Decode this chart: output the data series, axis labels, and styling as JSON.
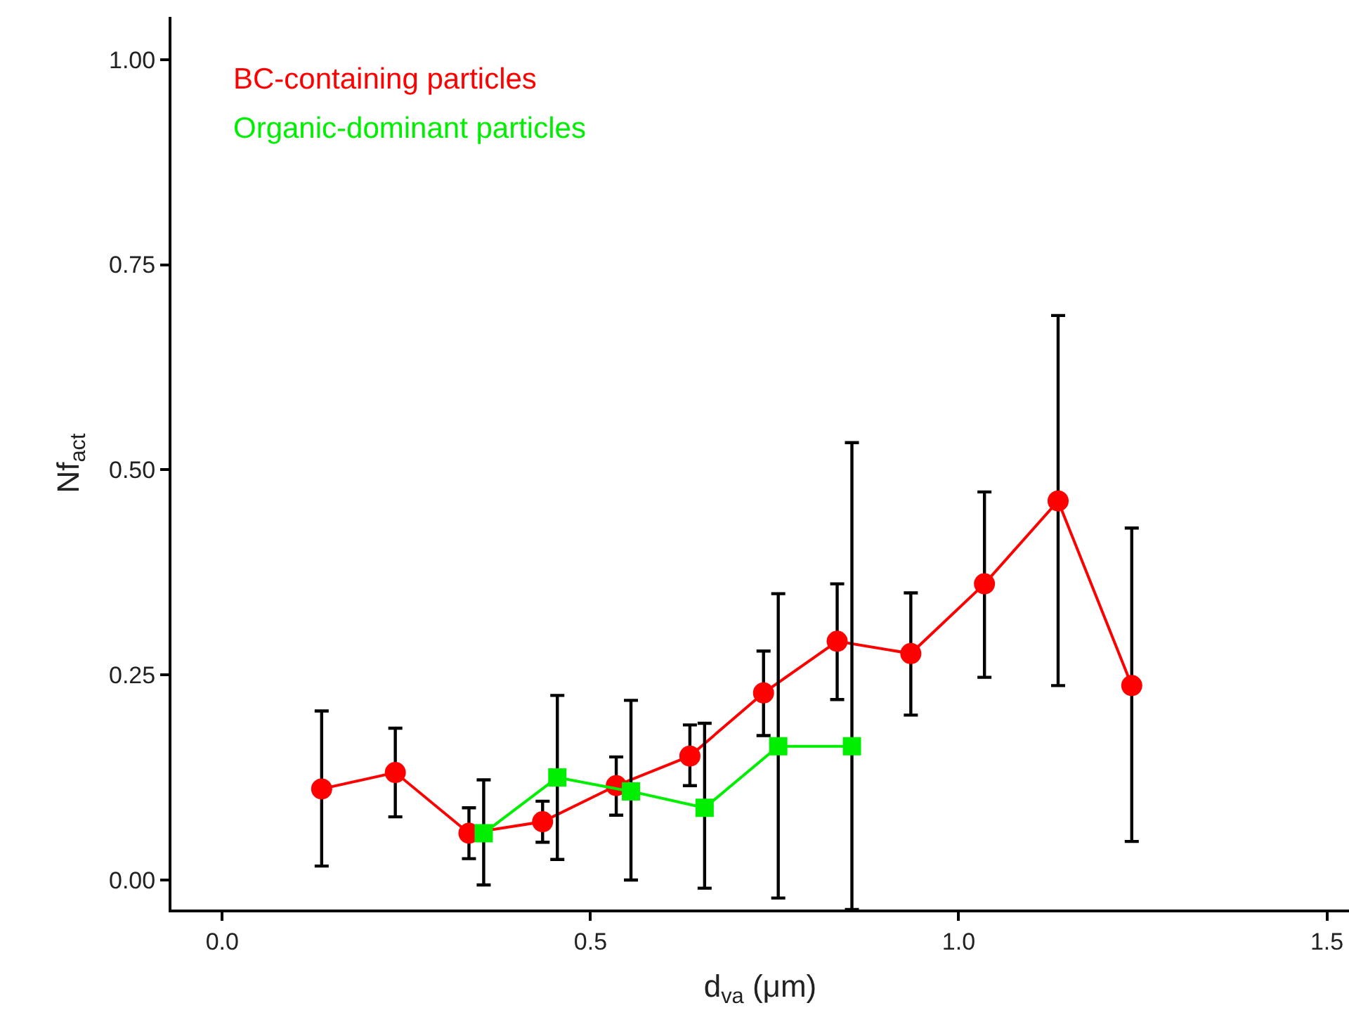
{
  "chart_data": {
    "type": "line",
    "xlabel": "d$_{va}$ (μm)",
    "ylabel": "Nf$_{act}$",
    "xlim": [
      -0.069,
      1.53
    ],
    "ylim": [
      -0.036,
      1.052
    ],
    "xticks": [
      {
        "value": 0,
        "label": "0.0"
      },
      0.5,
      {
        "value": 1,
        "label": "1.0"
      },
      1.5
    ],
    "yticks": [
      {
        "value": 0,
        "label": "0.00"
      },
      0.25,
      {
        "value": 0.5,
        "label": "0.50"
      },
      0.75,
      {
        "value": 1,
        "label": "1.00"
      }
    ],
    "legend": "top left",
    "line_style": "solid",
    "series": [
      {
        "name": "BC-containing particles",
        "color": "#ff0000",
        "marker": "circle",
        "x": [
          0.135,
          0.235,
          0.335,
          0.435,
          0.535,
          0.635,
          0.735,
          0.835,
          0.935,
          1.035,
          1.135,
          1.235
        ],
        "values": [
          0.111,
          0.131,
          0.057,
          0.071,
          0.115,
          0.151,
          0.228,
          0.291,
          0.276,
          0.361,
          0.462,
          0.237
        ],
        "errors": [
          [
            0.017,
            0.206
          ],
          [
            0.077,
            0.185
          ],
          [
            0.026,
            0.088
          ],
          [
            0.046,
            0.096
          ],
          [
            0.079,
            0.15
          ],
          [
            0.115,
            0.189
          ],
          [
            0.176,
            0.279
          ],
          [
            0.22,
            0.361
          ],
          [
            0.201,
            0.35
          ],
          [
            0.247,
            0.473
          ],
          [
            0.237,
            0.688
          ],
          [
            0.047,
            0.429
          ]
        ]
      },
      {
        "name": "Organic-dominant particles",
        "color": "#00ee00",
        "marker": "square",
        "x": [
          0.355,
          0.455,
          0.555,
          0.655,
          0.755,
          0.855
        ],
        "values": [
          0.057,
          0.125,
          0.108,
          0.088,
          0.163,
          0.163
        ],
        "errors": [
          [
            -0.006,
            0.122
          ],
          [
            0.025,
            0.225
          ],
          [
            0.0,
            0.219
          ],
          [
            -0.01,
            0.191
          ],
          [
            -0.022,
            0.349
          ],
          [
            -0.036,
            0.533
          ]
        ]
      }
    ]
  }
}
